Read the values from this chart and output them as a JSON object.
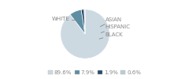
{
  "labels": [
    "WHITE",
    "ASIAN",
    "HISPANIC",
    "BLACK"
  ],
  "values": [
    89.6,
    7.9,
    1.9,
    0.6
  ],
  "colors": [
    "#cdd9e1",
    "#5f8ea4",
    "#2b4b6b",
    "#b8cdd6"
  ],
  "legend_labels": [
    "89.6%",
    "7.9%",
    "1.9%",
    "0.6%"
  ],
  "legend_colors": [
    "#cdd9e1",
    "#5f8ea4",
    "#2b4b6b",
    "#b8cdd6"
  ],
  "startangle": 90,
  "bg_color": "#ffffff",
  "text_color": "#888888",
  "font_size": 5.0
}
